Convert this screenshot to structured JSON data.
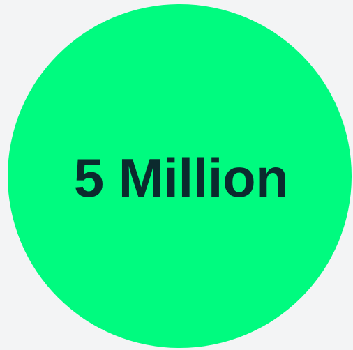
{
  "badge": {
    "text": "5 Million",
    "circle_color": "#00fb7f",
    "text_color": "#0b2a2e",
    "background_color": "#f3f4f5"
  }
}
